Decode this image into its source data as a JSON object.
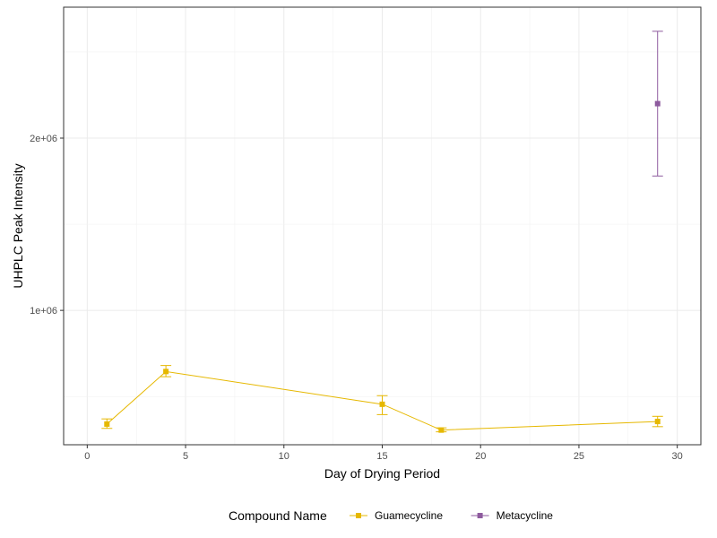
{
  "chart_data": {
    "type": "line",
    "title": "",
    "xlabel": "Day of Drying Period",
    "ylabel": "UHPLC Peak Intensity",
    "xlim": [
      -1.2,
      31.2
    ],
    "ylim": [
      220000,
      2760000
    ],
    "x_ticks": [
      0,
      5,
      10,
      15,
      20,
      25,
      30
    ],
    "x_tick_labels": [
      "0",
      "5",
      "10",
      "15",
      "20",
      "25",
      "30"
    ],
    "y_ticks": [
      1000000,
      2000000
    ],
    "y_tick_labels": [
      "1e+06",
      "2e+06"
    ],
    "grid": true,
    "legend": {
      "title": "Compound Name",
      "position": "bottom"
    },
    "series": [
      {
        "name": "Guamecycline",
        "color": "#E6B800",
        "marker": "square",
        "connect": true,
        "points": [
          {
            "x": 1,
            "y": 340000,
            "ymin": 315000,
            "ymax": 370000
          },
          {
            "x": 4,
            "y": 645000,
            "ymin": 615000,
            "ymax": 680000
          },
          {
            "x": 15,
            "y": 455000,
            "ymin": 395000,
            "ymax": 505000
          },
          {
            "x": 18,
            "y": 305000,
            "ymin": 295000,
            "ymax": 318000
          },
          {
            "x": 29,
            "y": 355000,
            "ymin": 325000,
            "ymax": 385000
          }
        ]
      },
      {
        "name": "Metacycline",
        "color": "#8E5B9E",
        "marker": "square",
        "connect": false,
        "points": [
          {
            "x": 29,
            "y": 2200000,
            "ymin": 1780000,
            "ymax": 2620000
          }
        ]
      }
    ]
  }
}
